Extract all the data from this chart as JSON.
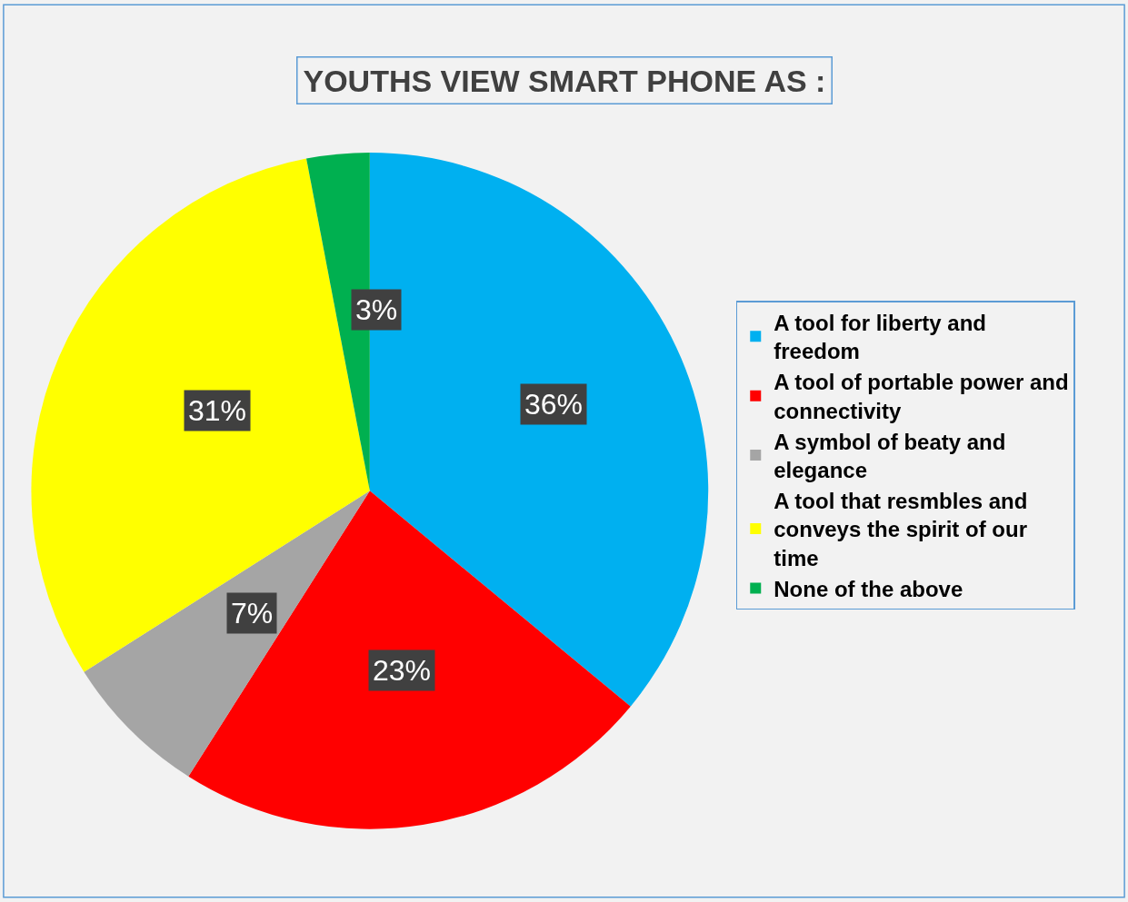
{
  "chart_data": {
    "type": "pie",
    "title": "YOUTHS VIEW SMART PHONE AS :",
    "categories": [
      "A tool for liberty and freedom",
      "A tool of portable power and connectivity",
      "A symbol of beaty and elegance",
      "A tool that resmbles and conveys the spirit of our time",
      "None of the above"
    ],
    "values": [
      36,
      23,
      7,
      31,
      3
    ],
    "colors": [
      "#00b0f0",
      "#ff0000",
      "#a5a5a5",
      "#ffff00",
      "#00b050"
    ],
    "value_labels": [
      "36%",
      "23%",
      "7%",
      "31%",
      "3%"
    ],
    "legend": "right"
  }
}
